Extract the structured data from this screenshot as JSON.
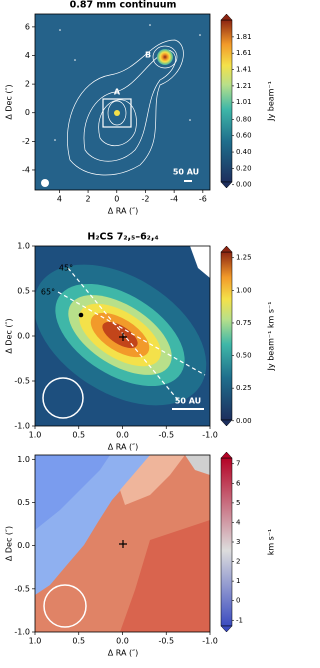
{
  "chart_data": [
    {
      "type": "image",
      "title": "0.87 mm continuum",
      "xlabel": "Δ RA (″)",
      "ylabel": "Δ Dec (″)",
      "xlim": [
        5.7,
        -6.5
      ],
      "ylim": [
        -5.4,
        6.9
      ],
      "xticks": [
        4,
        2,
        0,
        -2,
        -4,
        -6
      ],
      "yticks": [
        6,
        4,
        2,
        0,
        -2,
        -4
      ],
      "colorbar": {
        "label": "Jy beam⁻¹",
        "lim": [
          -0.04,
          2.09
        ],
        "ticks": [
          {
            "value": 0,
            "label": "0.00"
          },
          {
            "value": 0.2,
            "label": "0.20"
          },
          {
            "value": 0.4,
            "label": "0.40"
          },
          {
            "value": 0.6,
            "label": "0.60"
          },
          {
            "value": 0.8,
            "label": "0.80"
          },
          {
            "value": 1.01,
            "label": "1.01"
          },
          {
            "value": 1.21,
            "label": "1.21"
          },
          {
            "value": 1.41,
            "label": "1.41"
          },
          {
            "value": 1.61,
            "label": "1.61"
          },
          {
            "value": 1.81,
            "label": "1.81"
          }
        ]
      },
      "annotations": [
        "A",
        "B",
        "50 AU"
      ]
    },
    {
      "type": "image",
      "title": "H₂CS 7₂,₅–6₂,₄",
      "xlabel": "Δ RA (″)",
      "ylabel": "Δ Dec (″)",
      "xlim": [
        1.0,
        -1.0
      ],
      "ylim": [
        -1.0,
        1.0
      ],
      "xticks": [
        {
          "value": 1,
          "label": "1.0"
        },
        {
          "value": 0.5,
          "label": "0.5"
        },
        {
          "value": 0,
          "label": "0.0"
        },
        {
          "value": -0.5,
          "label": "-0.5"
        },
        {
          "value": -1,
          "label": "-1.0"
        }
      ],
      "yticks": [
        {
          "value": 1,
          "label": "1.0"
        },
        {
          "value": 0.5,
          "label": "0.5"
        },
        {
          "value": 0,
          "label": "0.0"
        },
        {
          "value": -0.5,
          "label": "-0.5"
        },
        {
          "value": -1,
          "label": "-1.0"
        }
      ],
      "colorbar": {
        "label": "Jy beam⁻¹ km s⁻¹",
        "lim": [
          -0.04,
          1.34
        ],
        "ticks": [
          {
            "value": 0,
            "label": "0.00"
          },
          {
            "value": 0.25,
            "label": "0.25"
          },
          {
            "value": 0.5,
            "label": "0.50"
          },
          {
            "value": 0.75,
            "label": "0.75"
          },
          {
            "value": 1,
            "label": "1.00"
          },
          {
            "value": 1.25,
            "label": "1.25"
          }
        ]
      },
      "annotations": [
        "45°",
        "65°",
        "50 AU"
      ]
    },
    {
      "type": "image",
      "xlabel": "Δ RA (″)",
      "ylabel": "Δ Dec (″)",
      "xlim": [
        1.0,
        -1.0
      ],
      "ylim": [
        -1.0,
        1.05
      ],
      "xticks": [
        {
          "value": 1,
          "label": "1.0"
        },
        {
          "value": 0.5,
          "label": "0.5"
        },
        {
          "value": 0,
          "label": "0.0"
        },
        {
          "value": -0.5,
          "label": "-0.5"
        },
        {
          "value": -1,
          "label": "-1.0"
        }
      ],
      "yticks": [
        {
          "value": 1,
          "label": "1.0"
        },
        {
          "value": 0.5,
          "label": "0.5"
        },
        {
          "value": 0,
          "label": "0.0"
        },
        {
          "value": -0.5,
          "label": "-0.5"
        },
        {
          "value": -1,
          "label": "-1.0"
        }
      ],
      "colorbar": {
        "label": "km s⁻¹",
        "lim": [
          -1.6,
          7.6
        ],
        "ticks": [
          -1,
          0,
          1,
          2,
          3,
          4,
          5,
          6,
          7
        ]
      }
    }
  ]
}
